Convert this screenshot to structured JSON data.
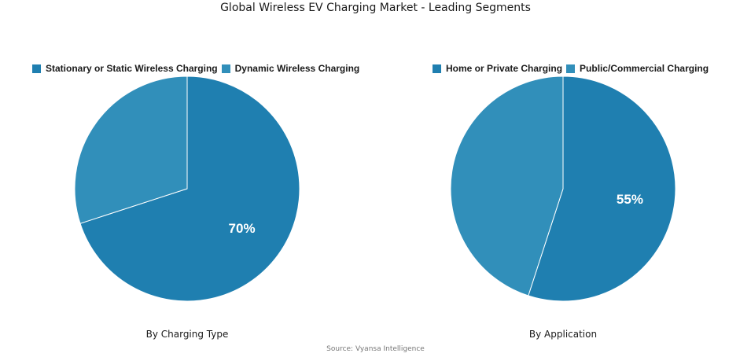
{
  "title": "Global Wireless EV Charging Market - Leading Segments",
  "source": "Source: Vyansa Intelligence",
  "colors": {
    "primary": "#1f7fb0",
    "secondary": "#318fba"
  },
  "chart_data": [
    {
      "type": "pie",
      "caption": "By Charging Type",
      "legend_placement": "top",
      "slices": [
        {
          "label": "Stationary or Static Wireless Charging",
          "value": 70,
          "display": "70%",
          "color": "#1f7fb0"
        },
        {
          "label": "Dynamic Wireless Charging",
          "value": 30,
          "display": "",
          "color": "#318fba"
        }
      ]
    },
    {
      "type": "pie",
      "caption": "By Application",
      "legend_placement": "top",
      "slices": [
        {
          "label": "Home or Private Charging",
          "value": 55,
          "display": "55%",
          "color": "#1f7fb0"
        },
        {
          "label": "Public/Commercial Charging",
          "value": 45,
          "display": "",
          "color": "#318fba"
        }
      ]
    }
  ]
}
